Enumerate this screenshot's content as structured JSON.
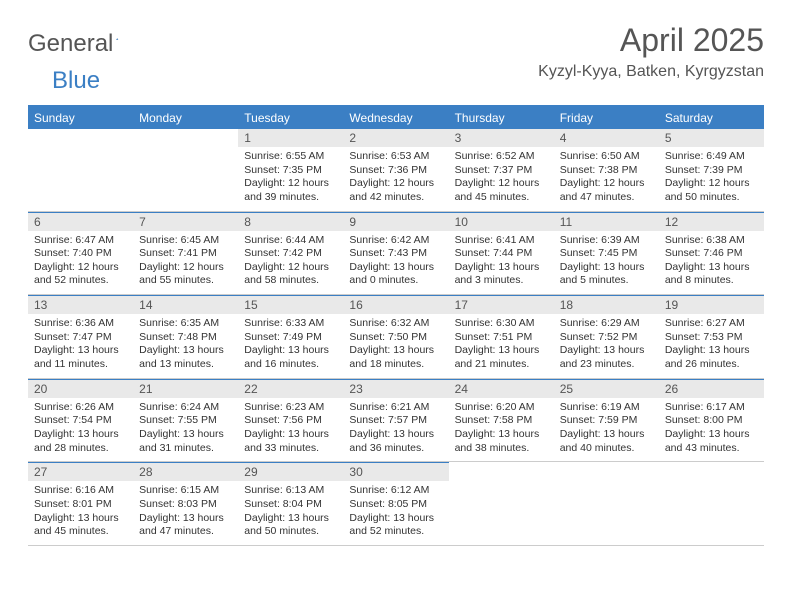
{
  "logo": {
    "text1": "General",
    "text2": "Blue"
  },
  "title": "April 2025",
  "location": "Kyzyl-Kyya, Batken, Kyrgyzstan",
  "colors": {
    "accent": "#3b7fc4",
    "gray_bar": "#e9e9e9",
    "text_muted": "#555555",
    "text_body": "#333333",
    "border": "#cccccc",
    "background": "#ffffff"
  },
  "typography": {
    "title_fontsize": 32,
    "location_fontsize": 16,
    "dow_fontsize": 12,
    "daynum_fontsize": 12,
    "body_fontsize": 10.5
  },
  "days_of_week": [
    "Sunday",
    "Monday",
    "Tuesday",
    "Wednesday",
    "Thursday",
    "Friday",
    "Saturday"
  ],
  "weeks": [
    [
      null,
      null,
      {
        "n": "1",
        "sunrise": "Sunrise: 6:55 AM",
        "sunset": "Sunset: 7:35 PM",
        "day1": "Daylight: 12 hours",
        "day2": "and 39 minutes."
      },
      {
        "n": "2",
        "sunrise": "Sunrise: 6:53 AM",
        "sunset": "Sunset: 7:36 PM",
        "day1": "Daylight: 12 hours",
        "day2": "and 42 minutes."
      },
      {
        "n": "3",
        "sunrise": "Sunrise: 6:52 AM",
        "sunset": "Sunset: 7:37 PM",
        "day1": "Daylight: 12 hours",
        "day2": "and 45 minutes."
      },
      {
        "n": "4",
        "sunrise": "Sunrise: 6:50 AM",
        "sunset": "Sunset: 7:38 PM",
        "day1": "Daylight: 12 hours",
        "day2": "and 47 minutes."
      },
      {
        "n": "5",
        "sunrise": "Sunrise: 6:49 AM",
        "sunset": "Sunset: 7:39 PM",
        "day1": "Daylight: 12 hours",
        "day2": "and 50 minutes."
      }
    ],
    [
      {
        "n": "6",
        "sunrise": "Sunrise: 6:47 AM",
        "sunset": "Sunset: 7:40 PM",
        "day1": "Daylight: 12 hours",
        "day2": "and 52 minutes."
      },
      {
        "n": "7",
        "sunrise": "Sunrise: 6:45 AM",
        "sunset": "Sunset: 7:41 PM",
        "day1": "Daylight: 12 hours",
        "day2": "and 55 minutes."
      },
      {
        "n": "8",
        "sunrise": "Sunrise: 6:44 AM",
        "sunset": "Sunset: 7:42 PM",
        "day1": "Daylight: 12 hours",
        "day2": "and 58 minutes."
      },
      {
        "n": "9",
        "sunrise": "Sunrise: 6:42 AM",
        "sunset": "Sunset: 7:43 PM",
        "day1": "Daylight: 13 hours",
        "day2": "and 0 minutes."
      },
      {
        "n": "10",
        "sunrise": "Sunrise: 6:41 AM",
        "sunset": "Sunset: 7:44 PM",
        "day1": "Daylight: 13 hours",
        "day2": "and 3 minutes."
      },
      {
        "n": "11",
        "sunrise": "Sunrise: 6:39 AM",
        "sunset": "Sunset: 7:45 PM",
        "day1": "Daylight: 13 hours",
        "day2": "and 5 minutes."
      },
      {
        "n": "12",
        "sunrise": "Sunrise: 6:38 AM",
        "sunset": "Sunset: 7:46 PM",
        "day1": "Daylight: 13 hours",
        "day2": "and 8 minutes."
      }
    ],
    [
      {
        "n": "13",
        "sunrise": "Sunrise: 6:36 AM",
        "sunset": "Sunset: 7:47 PM",
        "day1": "Daylight: 13 hours",
        "day2": "and 11 minutes."
      },
      {
        "n": "14",
        "sunrise": "Sunrise: 6:35 AM",
        "sunset": "Sunset: 7:48 PM",
        "day1": "Daylight: 13 hours",
        "day2": "and 13 minutes."
      },
      {
        "n": "15",
        "sunrise": "Sunrise: 6:33 AM",
        "sunset": "Sunset: 7:49 PM",
        "day1": "Daylight: 13 hours",
        "day2": "and 16 minutes."
      },
      {
        "n": "16",
        "sunrise": "Sunrise: 6:32 AM",
        "sunset": "Sunset: 7:50 PM",
        "day1": "Daylight: 13 hours",
        "day2": "and 18 minutes."
      },
      {
        "n": "17",
        "sunrise": "Sunrise: 6:30 AM",
        "sunset": "Sunset: 7:51 PM",
        "day1": "Daylight: 13 hours",
        "day2": "and 21 minutes."
      },
      {
        "n": "18",
        "sunrise": "Sunrise: 6:29 AM",
        "sunset": "Sunset: 7:52 PM",
        "day1": "Daylight: 13 hours",
        "day2": "and 23 minutes."
      },
      {
        "n": "19",
        "sunrise": "Sunrise: 6:27 AM",
        "sunset": "Sunset: 7:53 PM",
        "day1": "Daylight: 13 hours",
        "day2": "and 26 minutes."
      }
    ],
    [
      {
        "n": "20",
        "sunrise": "Sunrise: 6:26 AM",
        "sunset": "Sunset: 7:54 PM",
        "day1": "Daylight: 13 hours",
        "day2": "and 28 minutes."
      },
      {
        "n": "21",
        "sunrise": "Sunrise: 6:24 AM",
        "sunset": "Sunset: 7:55 PM",
        "day1": "Daylight: 13 hours",
        "day2": "and 31 minutes."
      },
      {
        "n": "22",
        "sunrise": "Sunrise: 6:23 AM",
        "sunset": "Sunset: 7:56 PM",
        "day1": "Daylight: 13 hours",
        "day2": "and 33 minutes."
      },
      {
        "n": "23",
        "sunrise": "Sunrise: 6:21 AM",
        "sunset": "Sunset: 7:57 PM",
        "day1": "Daylight: 13 hours",
        "day2": "and 36 minutes."
      },
      {
        "n": "24",
        "sunrise": "Sunrise: 6:20 AM",
        "sunset": "Sunset: 7:58 PM",
        "day1": "Daylight: 13 hours",
        "day2": "and 38 minutes."
      },
      {
        "n": "25",
        "sunrise": "Sunrise: 6:19 AM",
        "sunset": "Sunset: 7:59 PM",
        "day1": "Daylight: 13 hours",
        "day2": "and 40 minutes."
      },
      {
        "n": "26",
        "sunrise": "Sunrise: 6:17 AM",
        "sunset": "Sunset: 8:00 PM",
        "day1": "Daylight: 13 hours",
        "day2": "and 43 minutes."
      }
    ],
    [
      {
        "n": "27",
        "sunrise": "Sunrise: 6:16 AM",
        "sunset": "Sunset: 8:01 PM",
        "day1": "Daylight: 13 hours",
        "day2": "and 45 minutes."
      },
      {
        "n": "28",
        "sunrise": "Sunrise: 6:15 AM",
        "sunset": "Sunset: 8:03 PM",
        "day1": "Daylight: 13 hours",
        "day2": "and 47 minutes."
      },
      {
        "n": "29",
        "sunrise": "Sunrise: 6:13 AM",
        "sunset": "Sunset: 8:04 PM",
        "day1": "Daylight: 13 hours",
        "day2": "and 50 minutes."
      },
      {
        "n": "30",
        "sunrise": "Sunrise: 6:12 AM",
        "sunset": "Sunset: 8:05 PM",
        "day1": "Daylight: 13 hours",
        "day2": "and 52 minutes."
      },
      null,
      null,
      null
    ]
  ]
}
